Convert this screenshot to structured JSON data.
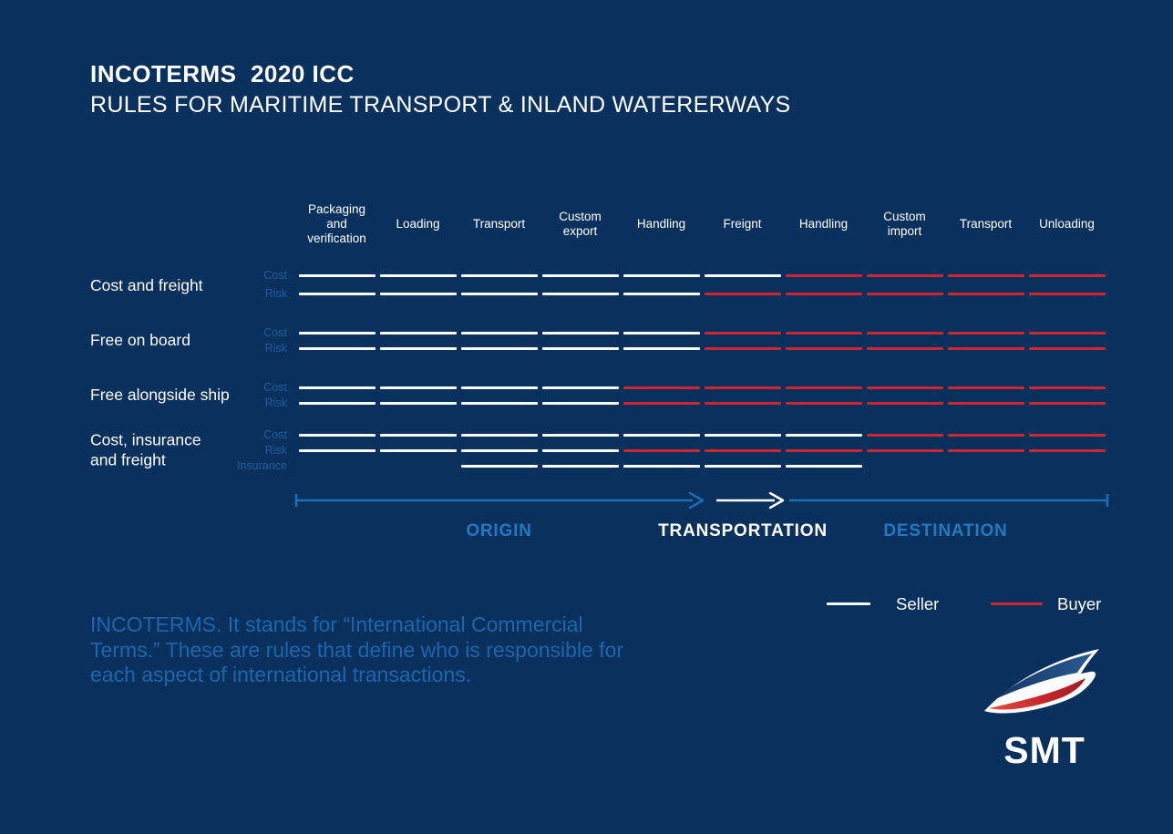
{
  "header": {
    "title": "INCOTERMS  2020 ICC",
    "subtitle": "RULES FOR MARITIME TRANSPORT & INLAND WATERERWAYS"
  },
  "colors": {
    "background": "#0a315e",
    "seller": "#ffffff",
    "buyer": "#cf262f",
    "axis_blue": "#1f6cb4",
    "phase_blue": "#2478c0",
    "dim_label_blue": "#1f5c9d",
    "paragraph_blue": "#1d66ac"
  },
  "chart_data": {
    "type": "table",
    "title": "INCOTERMS 2020 ICC — seller/buyer responsibility per transport stage",
    "columns": [
      "Packaging and verification",
      "Loading",
      "Transport",
      "Custom export",
      "Handling",
      "Freignt",
      "Handling",
      "Custom import",
      "Transport",
      "Unloading"
    ],
    "legend_position": "bottom-right",
    "rows": [
      {
        "label": "Cost and freight",
        "lines": [
          {
            "name": "Cost",
            "segments": [
              "seller",
              "seller",
              "seller",
              "seller",
              "seller",
              "seller",
              "buyer",
              "buyer",
              "buyer",
              "buyer"
            ]
          },
          {
            "name": "Risk",
            "segments": [
              "seller",
              "seller",
              "seller",
              "seller",
              "seller",
              "buyer",
              "buyer",
              "buyer",
              "buyer",
              "buyer"
            ]
          }
        ]
      },
      {
        "label": "Free on board",
        "lines": [
          {
            "name": "Cost",
            "segments": [
              "seller",
              "seller",
              "seller",
              "seller",
              "seller",
              "buyer",
              "buyer",
              "buyer",
              "buyer",
              "buyer"
            ]
          },
          {
            "name": "Risk",
            "segments": [
              "seller",
              "seller",
              "seller",
              "seller",
              "seller",
              "buyer",
              "buyer",
              "buyer",
              "buyer",
              "buyer"
            ]
          }
        ]
      },
      {
        "label": "Free alongside ship",
        "lines": [
          {
            "name": "Cost",
            "segments": [
              "seller",
              "seller",
              "seller",
              "seller",
              "buyer",
              "buyer",
              "buyer",
              "buyer",
              "buyer",
              "buyer"
            ]
          },
          {
            "name": "Risk",
            "segments": [
              "seller",
              "seller",
              "seller",
              "seller",
              "buyer",
              "buyer",
              "buyer",
              "buyer",
              "buyer",
              "buyer"
            ]
          }
        ]
      },
      {
        "label": "Cost, insurance and freight",
        "lines": [
          {
            "name": "Cost",
            "segments": [
              "seller",
              "seller",
              "seller",
              "seller",
              "seller",
              "seller",
              "seller",
              "buyer",
              "buyer",
              "buyer"
            ]
          },
          {
            "name": "Risk",
            "segments": [
              "seller",
              "seller",
              "seller",
              "seller",
              "buyer",
              "buyer",
              "buyer",
              "buyer",
              "buyer",
              "buyer"
            ]
          },
          {
            "name": "Insurance",
            "segments": [
              null,
              null,
              "seller",
              "seller",
              "seller",
              "seller",
              "seller",
              null,
              null,
              null
            ]
          }
        ]
      }
    ]
  },
  "axis": {
    "origin_label": "ORIGIN",
    "transportation_label": "TRANSPORTATION",
    "destination_label": "DESTINATION"
  },
  "legend": {
    "seller": "Seller",
    "buyer": "Buyer"
  },
  "footer": {
    "description": "INCOTERMS. It stands for “International Commercial Terms.” These are rules that define who is responsible for each aspect of international transactions."
  },
  "logo": {
    "text": "SMT"
  }
}
